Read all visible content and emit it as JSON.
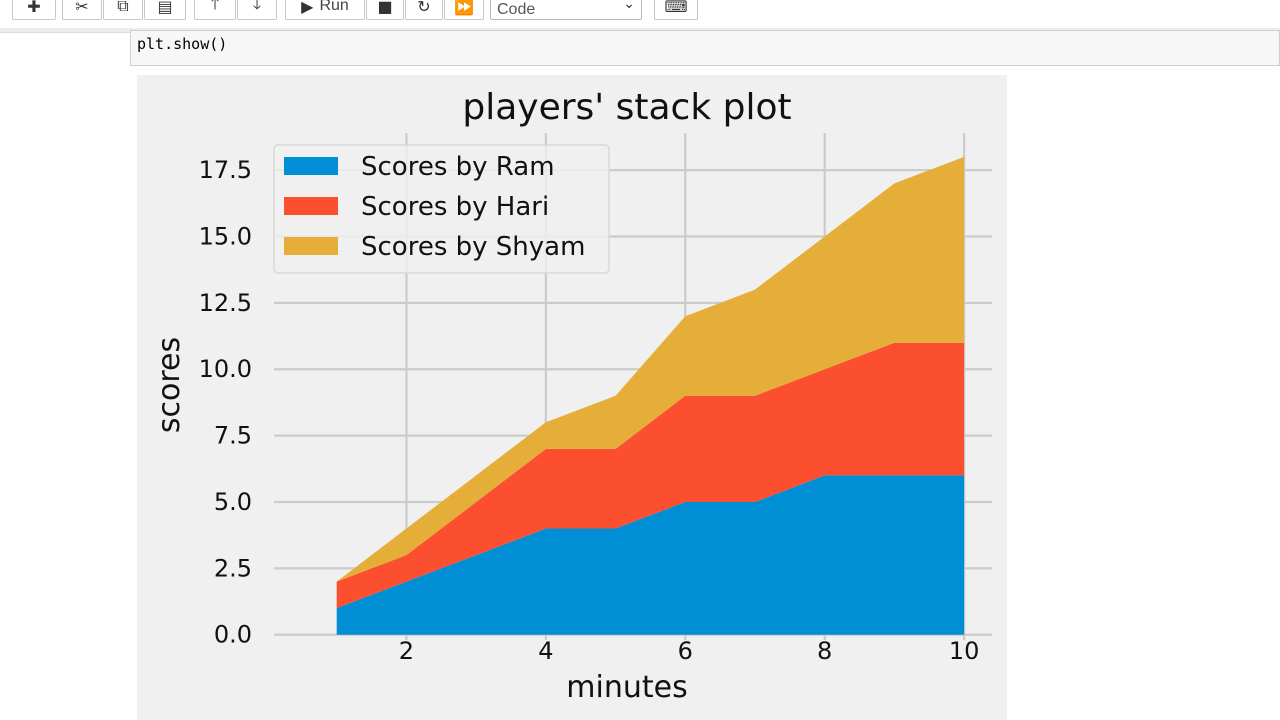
{
  "toolbar": {
    "add_icon": "plus-icon",
    "cut_icon": "scissors-icon",
    "copy_icon": "copy-icon",
    "paste_icon": "paste-icon",
    "move_up_icon": "arrow-up-icon",
    "move_down_icon": "arrow-down-icon",
    "run_label": "Run",
    "stop_icon": "stop-icon",
    "restart_icon": "restart-icon",
    "run_all_icon": "fast-forward-icon",
    "cell_type_value": "Code",
    "keyboard_icon": "keyboard-icon"
  },
  "code_cell": {
    "line": "plt.show()"
  },
  "chart_data": {
    "type": "area",
    "stacked": true,
    "title": "players' stack plot",
    "xlabel": "minutes",
    "ylabel": "scores",
    "x": [
      1,
      2,
      3,
      4,
      5,
      6,
      7,
      8,
      9,
      10
    ],
    "series": [
      {
        "name": "Scores by Ram",
        "values": [
          1,
          2,
          3,
          4,
          4,
          5,
          5,
          6,
          6,
          6
        ],
        "color": "#008fd5"
      },
      {
        "name": "Scores by Hari",
        "values": [
          1,
          1,
          2,
          3,
          3,
          4,
          4,
          4,
          5,
          5
        ],
        "color": "#fc4f30"
      },
      {
        "name": "Scores by Shyam",
        "values": [
          0,
          1,
          1,
          1,
          2,
          3,
          4,
          5,
          6,
          7
        ],
        "color": "#e5ae38"
      }
    ],
    "xticks": [
      2,
      4,
      6,
      8,
      10
    ],
    "xtick_labels": [
      "2",
      "4",
      "6",
      "8",
      "10"
    ],
    "yticks": [
      0,
      2.5,
      5,
      7.5,
      10,
      12.5,
      15,
      17.5
    ],
    "ytick_labels": [
      "0.0",
      "2.5",
      "5.0",
      "7.5",
      "10.0",
      "12.5",
      "15.0",
      "17.5"
    ],
    "xlim": [
      0.1,
      10.4
    ],
    "ylim": [
      -0.2,
      18.9
    ],
    "grid": true,
    "legend_position": "top-left",
    "style": "fivethirtyeight"
  }
}
